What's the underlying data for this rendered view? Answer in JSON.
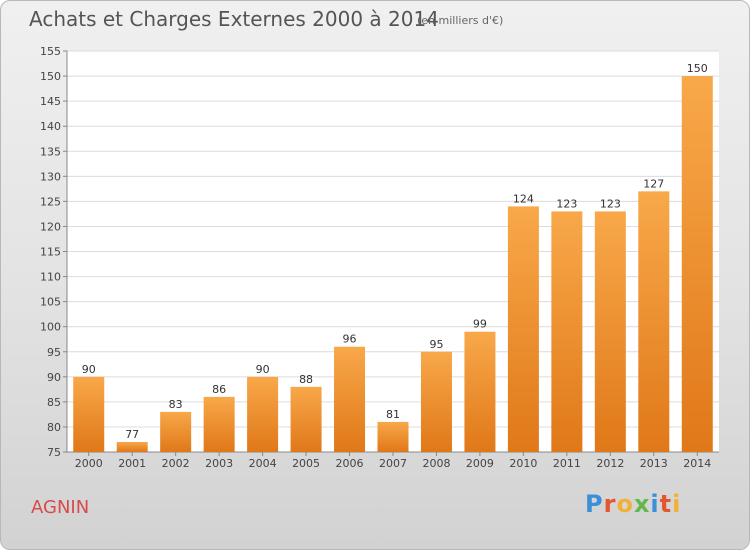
{
  "title": "Achats et Charges Externes 2000 à 2014",
  "subtitle": "(en milliers d'€)",
  "town": "AGNIN",
  "logo": {
    "letters": [
      "P",
      "r",
      "o",
      "x",
      "i",
      "t",
      "i"
    ],
    "colors": [
      "#3a8fd6",
      "#e4572e",
      "#f2b134",
      "#62b84a",
      "#3a8fd6",
      "#e4572e",
      "#f2b134"
    ]
  },
  "colors": {
    "bar_light": "#f8a84a",
    "bar_dark": "#e07818",
    "title": "#555555",
    "town": "#d94a4a"
  },
  "chart_data": {
    "type": "bar",
    "title": "Achats et Charges Externes 2000 à 2014",
    "subtitle": "(en milliers d'€)",
    "categories": [
      "2000",
      "2001",
      "2002",
      "2003",
      "2004",
      "2005",
      "2006",
      "2007",
      "2008",
      "2009",
      "2010",
      "2011",
      "2012",
      "2013",
      "2014"
    ],
    "values": [
      90,
      77,
      83,
      86,
      90,
      88,
      96,
      81,
      95,
      99,
      124,
      123,
      123,
      127,
      150
    ],
    "ylim": [
      75,
      155
    ],
    "yticks": [
      75,
      80,
      85,
      90,
      95,
      100,
      105,
      110,
      115,
      120,
      125,
      130,
      135,
      140,
      145,
      150,
      155
    ],
    "xlabel": "",
    "ylabel": "",
    "grid": true,
    "data_labels": true
  }
}
